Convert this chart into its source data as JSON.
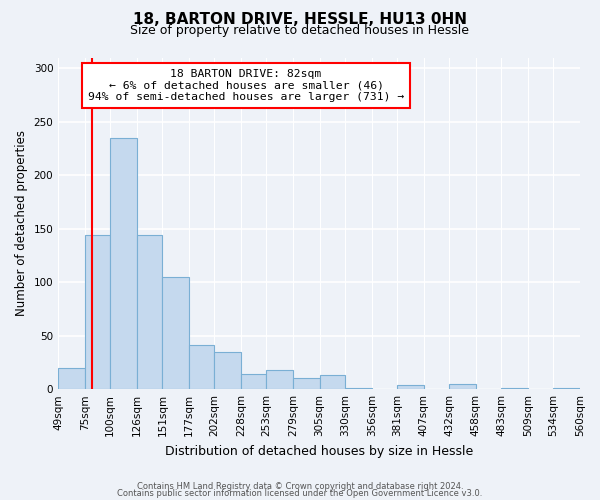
{
  "title": "18, BARTON DRIVE, HESSLE, HU13 0HN",
  "subtitle": "Size of property relative to detached houses in Hessle",
  "xlabel": "Distribution of detached houses by size in Hessle",
  "ylabel": "Number of detached properties",
  "bar_values": [
    20,
    144,
    235,
    144,
    105,
    41,
    35,
    14,
    18,
    10,
    13,
    1,
    0,
    4,
    0,
    5,
    0,
    1,
    0,
    1
  ],
  "tick_labels": [
    "49sqm",
    "75sqm",
    "100sqm",
    "126sqm",
    "151sqm",
    "177sqm",
    "202sqm",
    "228sqm",
    "253sqm",
    "279sqm",
    "305sqm",
    "330sqm",
    "356sqm",
    "381sqm",
    "407sqm",
    "432sqm",
    "458sqm",
    "483sqm",
    "509sqm",
    "534sqm",
    "560sqm"
  ],
  "bar_color": "#c5d9ee",
  "bar_edge_color": "#7aafd4",
  "vline_color": "red",
  "annotation_title": "18 BARTON DRIVE: 82sqm",
  "annotation_line1": "← 6% of detached houses are smaller (46)",
  "annotation_line2": "94% of semi-detached houses are larger (731) →",
  "annotation_box_facecolor": "white",
  "annotation_box_edgecolor": "red",
  "ylim": [
    0,
    310
  ],
  "yticks": [
    0,
    50,
    100,
    150,
    200,
    250,
    300
  ],
  "footer1": "Contains HM Land Registry data © Crown copyright and database right 2024.",
  "footer2": "Contains public sector information licensed under the Open Government Licence v3.0.",
  "background_color": "#eef2f8",
  "bin_edges": [
    49,
    75,
    100,
    126,
    151,
    177,
    202,
    228,
    253,
    279,
    305,
    330,
    356,
    381,
    407,
    432,
    458,
    483,
    509,
    534,
    560
  ],
  "property_sqm": 82
}
